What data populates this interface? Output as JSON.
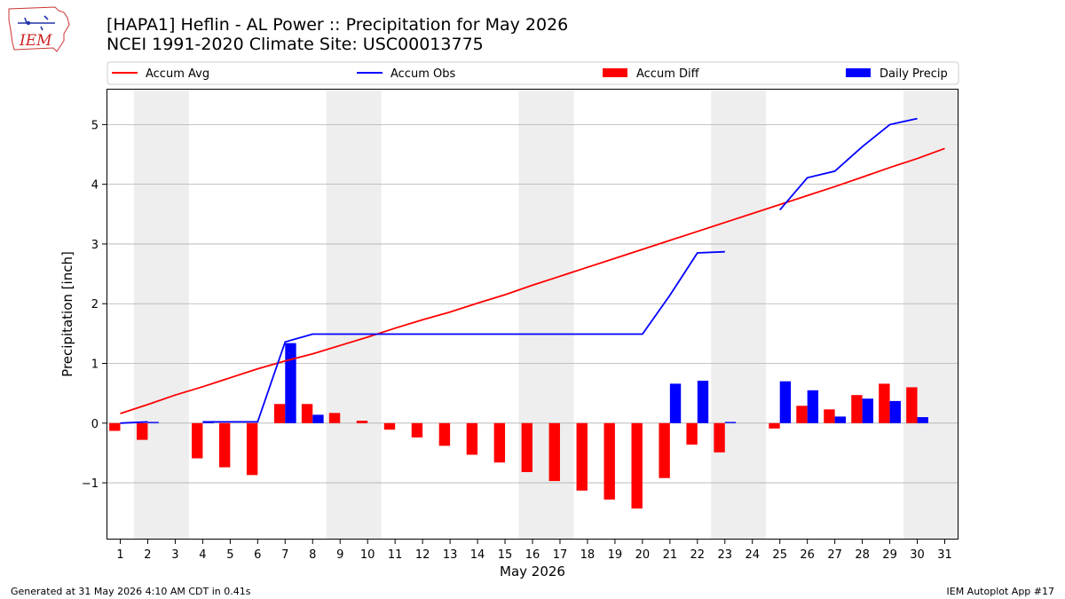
{
  "header": {
    "title_line1": "[HAPA1] Heflin - AL Power :: Precipitation for May 2026",
    "title_line2": "NCEI 1991-2020 Climate Site: USC00013775"
  },
  "logo": {
    "text": "IEM",
    "icon": "iem-iowa-map-logo"
  },
  "footer": {
    "left": "Generated at 31 May 2026 4:10 AM CDT in 0.41s",
    "right": "IEM Autoplot App #17"
  },
  "colors": {
    "accum_avg": "#ff0000",
    "accum_obs": "#0000ff",
    "accum_diff": "#ff0000",
    "daily_precip": "#0000ff",
    "weekend_shade": "#eeeeee",
    "grid": "#b0b0b0"
  },
  "chart_data": {
    "type": "bar",
    "xlabel": "May 2026",
    "ylabel": "Precipitation [inch]",
    "ylim": [
      -1.95,
      5.6
    ],
    "yticks": [
      -1,
      0,
      1,
      2,
      3,
      4,
      5
    ],
    "ytick_labels": [
      "−1",
      "0",
      "1",
      "2",
      "3",
      "4",
      "5"
    ],
    "x": [
      1,
      2,
      3,
      4,
      5,
      6,
      7,
      8,
      9,
      10,
      11,
      12,
      13,
      14,
      15,
      16,
      17,
      18,
      19,
      20,
      21,
      22,
      23,
      24,
      25,
      26,
      27,
      28,
      29,
      30,
      31
    ],
    "x_tick_labels": [
      "1",
      "2",
      "3",
      "4",
      "5",
      "6",
      "7",
      "8",
      "9",
      "10",
      "11",
      "12",
      "13",
      "14",
      "15",
      "16",
      "17",
      "18",
      "19",
      "20",
      "21",
      "22",
      "23",
      "24",
      "25",
      "26",
      "27",
      "28",
      "29",
      "30",
      "31"
    ],
    "grid": "horizontal",
    "legend_position": "top",
    "shaded_weekend_days": [
      [
        2,
        3
      ],
      [
        9,
        10
      ],
      [
        16,
        17
      ],
      [
        23,
        24
      ],
      [
        30,
        31
      ]
    ],
    "series": [
      {
        "name": "Accum Avg",
        "kind": "line",
        "values": [
          0.16,
          0.31,
          0.47,
          0.61,
          0.76,
          0.91,
          1.04,
          1.16,
          1.3,
          1.44,
          1.59,
          1.73,
          1.86,
          2.01,
          2.15,
          2.31,
          2.46,
          2.61,
          2.76,
          2.91,
          3.06,
          3.21,
          3.36,
          3.51,
          3.66,
          3.81,
          3.96,
          4.12,
          4.28,
          4.43,
          4.6
        ]
      },
      {
        "name": "Accum Obs",
        "kind": "line",
        "values": [
          0.0,
          0.02,
          null,
          0.02,
          0.02,
          0.02,
          1.36,
          1.49,
          1.49,
          1.49,
          1.49,
          1.49,
          1.49,
          1.49,
          1.49,
          1.49,
          1.49,
          1.49,
          1.49,
          1.49,
          2.14,
          2.85,
          2.87,
          null,
          3.57,
          4.11,
          4.22,
          4.63,
          5.0,
          5.1,
          null
        ]
      },
      {
        "name": "Accum Diff",
        "kind": "bar",
        "values": [
          -0.13,
          -0.28,
          null,
          -0.59,
          -0.74,
          -0.87,
          0.32,
          0.32,
          0.17,
          0.04,
          -0.11,
          -0.24,
          -0.38,
          -0.53,
          -0.66,
          -0.82,
          -0.97,
          -1.13,
          -1.28,
          -1.43,
          -0.92,
          -0.36,
          -0.49,
          null,
          -0.09,
          0.29,
          0.23,
          0.47,
          0.66,
          0.6,
          null
        ]
      },
      {
        "name": "Daily Precip",
        "kind": "bar",
        "values": [
          0.0,
          0.02,
          null,
          0.02,
          0.0,
          0.0,
          1.34,
          0.14,
          0.0,
          0.0,
          0.0,
          0.0,
          0.0,
          0.0,
          0.0,
          0.0,
          0.0,
          0.0,
          0.0,
          0.0,
          0.66,
          0.71,
          0.02,
          null,
          0.7,
          0.55,
          0.11,
          0.41,
          0.37,
          0.1,
          null
        ]
      }
    ]
  }
}
